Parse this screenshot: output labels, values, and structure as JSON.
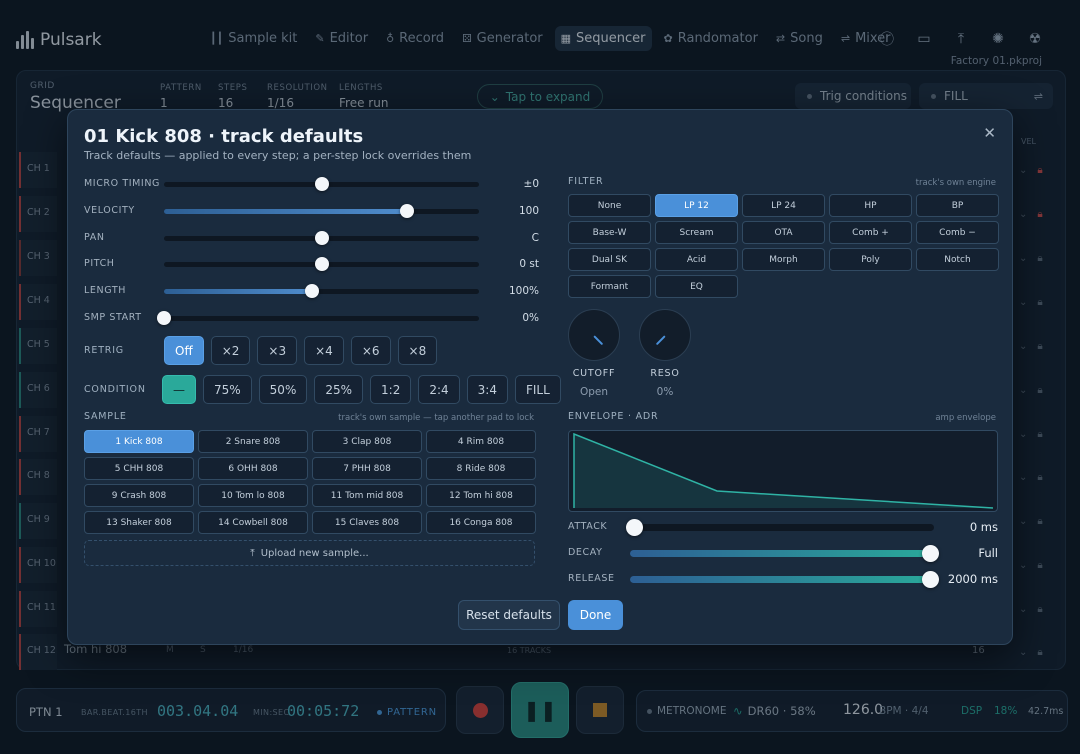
{
  "app": {
    "name": "Pulsark",
    "project": "Factory 01.pkproj"
  },
  "nav": [
    {
      "label": "Sample kit",
      "icon": "waveform-icon"
    },
    {
      "label": "Editor",
      "icon": "pencil-icon"
    },
    {
      "label": "Record",
      "icon": "mic-icon"
    },
    {
      "label": "Generator",
      "icon": "dice-icon"
    },
    {
      "label": "Sequencer",
      "icon": "grid-icon",
      "active": true
    },
    {
      "label": "Randomator",
      "icon": "palette-icon"
    },
    {
      "label": "Song",
      "icon": "loop-icon"
    },
    {
      "label": "Mixer",
      "icon": "sliders-icon"
    }
  ],
  "grid": {
    "section_label": "GRID",
    "title": "Sequencer",
    "stats": [
      {
        "label": "PATTERN",
        "value": "1"
      },
      {
        "label": "STEPS",
        "value": "16"
      },
      {
        "label": "RESOLUTION",
        "value": "1/16"
      },
      {
        "label": "LENGTHS",
        "value": "Free run"
      }
    ],
    "expand_label": "Tap to expand",
    "trig_label": "Trig conditions",
    "fill_label": "FILL",
    "vel_header": "VEL",
    "channels": [
      "CH 1",
      "CH 2",
      "CH 3",
      "CH 4",
      "CH 5",
      "CH 6",
      "CH 7",
      "CH 8",
      "CH 9",
      "CH 10",
      "CH 11",
      "CH 12"
    ],
    "ch12": {
      "name": "Tom hi 808",
      "mute": "M",
      "solo": "S",
      "res": "1/16",
      "tracks": "16 TRACKS",
      "steps": "16"
    }
  },
  "transport": {
    "pattern": "PTN 1",
    "pos_label": "BAR.BEAT.16TH",
    "pos_value": "003.04.04",
    "time_label": "MIN:SEC",
    "time_value": "00:05:72",
    "mode": "PATTERN",
    "metronome": "METRONOME",
    "machine": "DR60 · 58%",
    "bpm_value": "126.0",
    "bpm_label": "BPM · 4/4",
    "dsp_label": "DSP",
    "dsp_value": "18%",
    "latency": "42.7ms"
  },
  "modal": {
    "title": "01 Kick 808 · track defaults",
    "subtitle": "Track defaults — applied to every step; a per-step lock overrides them",
    "sliders": [
      {
        "label": "MICRO TIMING",
        "value": "±0",
        "level": 0.5,
        "bipolar": true
      },
      {
        "label": "VELOCITY",
        "value": "100",
        "level": 0.77
      },
      {
        "label": "PAN",
        "value": "C",
        "level": 0.5,
        "bipolar": true
      },
      {
        "label": "PITCH",
        "value": "0 st",
        "level": 0.5,
        "bipolar": true
      },
      {
        "label": "LENGTH",
        "value": "100%",
        "level": 0.47
      },
      {
        "label": "SMP START",
        "value": "0%",
        "level": 0.0
      }
    ],
    "retrig": {
      "label": "RETRIG",
      "options": [
        "Off",
        "×2",
        "×3",
        "×4",
        "×6",
        "×8"
      ],
      "selected": 0
    },
    "condition": {
      "label": "CONDITION",
      "options": [
        "—",
        "75%",
        "50%",
        "25%",
        "1:2",
        "2:4",
        "3:4",
        "FILL"
      ],
      "selected": 0
    },
    "sample": {
      "label": "SAMPLE",
      "note": "track's own sample — tap another pad to lock",
      "pads": [
        "1 Kick 808",
        "2 Snare 808",
        "3 Clap 808",
        "4 Rim 808",
        "5 CHH 808",
        "6 OHH 808",
        "7 PHH 808",
        "8 Ride 808",
        "9 Crash 808",
        "10 Tom lo 808",
        "11 Tom mid 808",
        "12 Tom hi 808",
        "13 Shaker 808",
        "14 Cowbell 808",
        "15 Claves 808",
        "16 Conga 808"
      ],
      "selected": 0,
      "upload": "Upload new sample..."
    },
    "filter": {
      "label": "FILTER",
      "note": "track's own engine",
      "types": [
        "None",
        "LP 12",
        "LP 24",
        "HP",
        "BP",
        "Base-W",
        "Scream",
        "OTA",
        "Comb +",
        "Comb −",
        "Dual SK",
        "Acid",
        "Morph",
        "Poly",
        "Notch",
        "Formant",
        "EQ"
      ],
      "selected": 1,
      "cutoff": {
        "label": "CUTOFF",
        "value": "Open"
      },
      "reso": {
        "label": "RESO",
        "value": "0%"
      }
    },
    "envelope": {
      "label": "ENVELOPE · ADR",
      "note": "amp envelope",
      "params": [
        {
          "label": "ATTACK",
          "value": "0 ms",
          "level": 0.0
        },
        {
          "label": "DECAY",
          "value": "Full",
          "level": 1.0
        },
        {
          "label": "RELEASE",
          "value": "2000 ms",
          "level": 1.0
        }
      ]
    },
    "reset_label": "Reset defaults",
    "done_label": "Done"
  },
  "colors": {
    "accent": "#4a90d9",
    "teal": "#2aa99a",
    "record": "#d9453f",
    "stop": "#c68a2e"
  }
}
